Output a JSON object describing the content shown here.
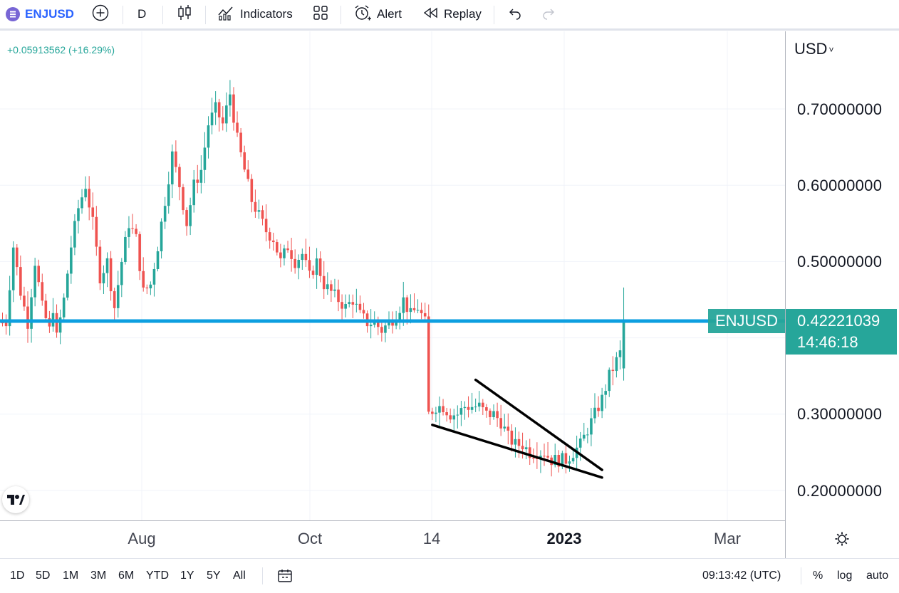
{
  "toolbar": {
    "symbol": "ENJUSD",
    "interval": "D",
    "indicators_label": "Indicators",
    "alert_label": "Alert",
    "replay_label": "Replay"
  },
  "legend": {
    "change": "+0.05913562 (+16.29%)"
  },
  "price_axis": {
    "currency": "USD",
    "currency_caret": "˅",
    "labels": [
      "0.70000000",
      "0.60000000",
      "0.50000000",
      "0.30000000",
      "0.20000000"
    ],
    "current_price": "0.42221039",
    "countdown": "14:46:18",
    "symbol_badge": "ENJUSD"
  },
  "time_axis": {
    "labels": [
      "Aug",
      "Oct",
      "14",
      "2023",
      "Mar"
    ]
  },
  "bottom": {
    "ranges": [
      "1D",
      "5D",
      "1M",
      "3M",
      "6M",
      "YTD",
      "1Y",
      "5Y",
      "All"
    ],
    "clock": "09:13:42 (UTC)",
    "percent": "%",
    "log": "log",
    "auto": "auto"
  },
  "chart_data": {
    "type": "candlestick",
    "symbol": "ENJUSD",
    "yticks": [
      0.2,
      0.3,
      0.5,
      0.6,
      0.7
    ],
    "xticks": [
      "Aug",
      "Oct",
      "14",
      "2023",
      "Mar"
    ],
    "horizontal_line": 0.422,
    "close_path": [
      [
        1,
        0.42
      ],
      [
        3,
        0.52
      ],
      [
        5,
        0.46
      ],
      [
        7,
        0.42
      ],
      [
        9,
        0.5
      ],
      [
        11,
        0.44
      ],
      [
        13,
        0.41
      ],
      [
        14,
        0.44
      ],
      [
        15,
        0.4
      ],
      [
        17,
        0.45
      ],
      [
        19,
        0.52
      ],
      [
        21,
        0.57
      ],
      [
        23,
        0.6
      ],
      [
        25,
        0.55
      ],
      [
        27,
        0.48
      ],
      [
        29,
        0.5
      ],
      [
        31,
        0.44
      ],
      [
        33,
        0.5
      ],
      [
        35,
        0.55
      ],
      [
        37,
        0.53
      ],
      [
        39,
        0.46
      ],
      [
        41,
        0.47
      ],
      [
        43,
        0.52
      ],
      [
        45,
        0.58
      ],
      [
        47,
        0.64
      ],
      [
        49,
        0.6
      ],
      [
        51,
        0.55
      ],
      [
        53,
        0.6
      ],
      [
        55,
        0.62
      ],
      [
        57,
        0.68
      ],
      [
        59,
        0.7
      ],
      [
        61,
        0.68
      ],
      [
        63,
        0.72
      ],
      [
        65,
        0.66
      ],
      [
        67,
        0.62
      ],
      [
        69,
        0.58
      ],
      [
        71,
        0.56
      ],
      [
        73,
        0.54
      ],
      [
        75,
        0.53
      ],
      [
        77,
        0.5
      ],
      [
        79,
        0.52
      ],
      [
        81,
        0.5
      ],
      [
        83,
        0.51
      ],
      [
        85,
        0.48
      ],
      [
        87,
        0.5
      ],
      [
        89,
        0.47
      ],
      [
        91,
        0.46
      ],
      [
        93,
        0.45
      ],
      [
        95,
        0.44
      ],
      [
        97,
        0.45
      ],
      [
        99,
        0.43
      ],
      [
        101,
        0.42
      ],
      [
        103,
        0.42
      ],
      [
        105,
        0.41
      ],
      [
        107,
        0.42
      ],
      [
        109,
        0.43
      ],
      [
        111,
        0.45
      ],
      [
        113,
        0.43
      ],
      [
        115,
        0.44
      ],
      [
        117,
        0.42
      ],
      [
        118,
        0.3
      ],
      [
        120,
        0.31
      ],
      [
        122,
        0.31
      ],
      [
        124,
        0.3
      ],
      [
        126,
        0.3
      ],
      [
        128,
        0.31
      ],
      [
        130,
        0.31
      ],
      [
        132,
        0.31
      ],
      [
        134,
        0.3
      ],
      [
        136,
        0.3
      ],
      [
        138,
        0.29
      ],
      [
        140,
        0.27
      ],
      [
        142,
        0.26
      ],
      [
        144,
        0.26
      ],
      [
        146,
        0.25
      ],
      [
        148,
        0.25
      ],
      [
        150,
        0.25
      ],
      [
        152,
        0.24
      ],
      [
        154,
        0.24
      ],
      [
        156,
        0.24
      ],
      [
        158,
        0.25
      ],
      [
        160,
        0.26
      ],
      [
        162,
        0.28
      ],
      [
        164,
        0.3
      ],
      [
        166,
        0.32
      ],
      [
        168,
        0.35
      ],
      [
        170,
        0.37
      ],
      [
        171,
        0.38
      ],
      [
        172,
        0.42
      ]
    ],
    "annotations": [
      {
        "type": "trendline",
        "from": [
          131,
          0.345
        ],
        "to": [
          166,
          0.227
        ]
      },
      {
        "type": "trendline",
        "from": [
          119,
          0.286
        ],
        "to": [
          166,
          0.217
        ]
      }
    ]
  }
}
